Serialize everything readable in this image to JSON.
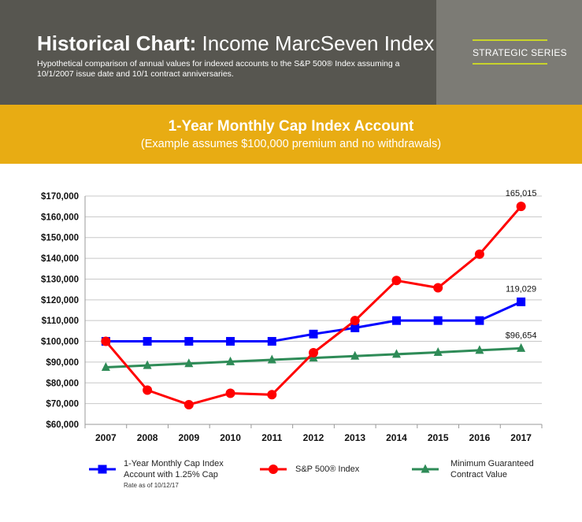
{
  "header": {
    "title_bold": "Historical Chart:",
    "title_rest": " Income MarcSeven Index",
    "subtitle": "Hypothetical comparison of annual values for indexed accounts to the S&P 500® Index assuming a 10/1/2007 issue date and 10/1 contract anniversaries.",
    "badge": "STRATEGIC SERIES"
  },
  "band": {
    "title": "1-Year Monthly Cap Index Account",
    "subtitle": "(Example assumes $100,000 premium and no withdrawals)"
  },
  "legend": {
    "cap_line1": "1-Year Monthly Cap Index",
    "cap_line2": "Account with 1.25% Cap",
    "cap_note": "Rate as of 10/12/17",
    "sp": "S&P 500® Index",
    "min_line1": "Minimum Guaranteed",
    "min_line2": "Contract Value"
  },
  "chart_data": {
    "type": "line",
    "x": [
      "2007",
      "2008",
      "2009",
      "2010",
      "2011",
      "2012",
      "2013",
      "2014",
      "2015",
      "2016",
      "2017"
    ],
    "ylim": [
      60000,
      170000
    ],
    "yticks": [
      "$60,000",
      "$70,000",
      "$80,000",
      "$90,000",
      "$100,000",
      "$110,000",
      "$120,000",
      "$130,000",
      "$140,000",
      "$150,000",
      "$160,000",
      "$170,000"
    ],
    "grid": true,
    "legend_position": "bottom",
    "series": [
      {
        "name": "1-Year Monthly Cap Index Account with 1.25% Cap",
        "color": "#0000ff",
        "marker": "square",
        "values": [
          100000,
          100000,
          100000,
          100000,
          100000,
          103500,
          106500,
          110000,
          110000,
          110000,
          119029
        ],
        "end_label": "119,029"
      },
      {
        "name": "S&P 500® Index",
        "color": "#ff0000",
        "marker": "circle",
        "values": [
          100000,
          76500,
          69500,
          75000,
          74300,
          94500,
          110000,
          129300,
          125800,
          142000,
          165015
        ],
        "end_label": "165,015"
      },
      {
        "name": "Minimum Guaranteed Contract Value",
        "color": "#2e8b57",
        "marker": "triangle",
        "values": [
          87500,
          88400,
          89300,
          90200,
          91100,
          92000,
          92900,
          93800,
          94700,
          95700,
          96654
        ],
        "end_label": "$96,654"
      }
    ]
  }
}
